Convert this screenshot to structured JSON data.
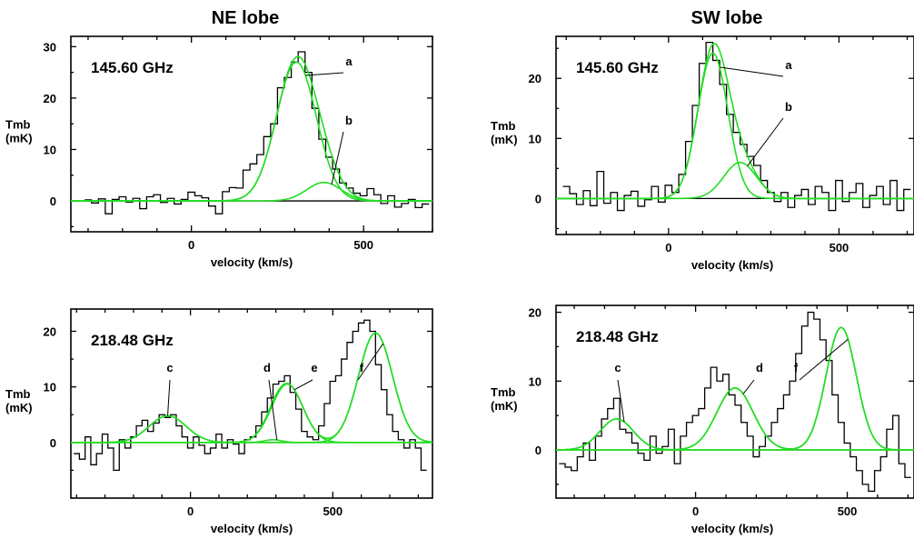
{
  "figure": {
    "left_title": "NE lobe",
    "right_title": "SW lobe"
  },
  "chart_data": [
    {
      "type": "line",
      "panel": "NE lobe",
      "label": "145.60 GHz",
      "xlabel": "velocity (km/s)",
      "ylabel": "Tmb\n(mK)",
      "xlim": [
        -350,
        700
      ],
      "ylim": [
        -6,
        32
      ],
      "xticks": [
        0,
        500
      ],
      "yticks": [
        0,
        10,
        20,
        30
      ],
      "series": [
        {
          "kind": "spectrum",
          "x": [
            -300,
            -280,
            -260,
            -240,
            -220,
            -200,
            -180,
            -160,
            -140,
            -120,
            -100,
            -80,
            -60,
            -40,
            -20,
            0,
            20,
            40,
            60,
            80,
            100,
            120,
            140,
            160,
            180,
            200,
            220,
            240,
            260,
            280,
            300,
            320,
            340,
            360,
            380,
            400,
            420,
            440,
            460,
            480,
            500,
            520,
            540,
            560,
            580,
            600,
            620,
            640,
            660,
            680
          ],
          "y": [
            0.2,
            -0.4,
            0.4,
            -2.5,
            0.3,
            0.8,
            -0.2,
            0.5,
            -1.5,
            0.8,
            1.2,
            -0.3,
            0.5,
            -0.6,
            0.3,
            1.7,
            1.0,
            0.6,
            -1.0,
            -2.5,
            1.8,
            2.6,
            2.5,
            6.0,
            7.2,
            9.0,
            12.5,
            15.0,
            22.0,
            24.0,
            27.0,
            29.0,
            25.0,
            18.0,
            12.0,
            8.5,
            6.2,
            3.5,
            2.5,
            1.5,
            1.0,
            2.4,
            1.2,
            -0.5,
            1.0,
            -1.2,
            -0.5,
            0.3,
            -1.3,
            -0.6
          ]
        },
        {
          "kind": "fit",
          "name": "a",
          "center": 305,
          "amplitude": 27.0,
          "sigma": 58
        },
        {
          "kind": "fit",
          "name": "b",
          "center": 385,
          "amplitude": 3.6,
          "sigma": 50
        }
      ],
      "annotations": [
        "a",
        "b"
      ]
    },
    {
      "type": "line",
      "panel": "SW lobe",
      "label": "145.60 GHz",
      "xlabel": "velocity (km/s)",
      "ylabel": "Tmb\n(mK)",
      "xlim": [
        -330,
        720
      ],
      "ylim": [
        -6,
        27
      ],
      "xticks": [
        0,
        500
      ],
      "yticks": [
        0,
        10,
        20
      ],
      "series": [
        {
          "kind": "spectrum",
          "x": [
            -300,
            -280,
            -260,
            -240,
            -220,
            -200,
            -180,
            -160,
            -140,
            -120,
            -100,
            -80,
            -60,
            -40,
            -20,
            0,
            20,
            40,
            60,
            80,
            100,
            120,
            140,
            160,
            180,
            200,
            220,
            240,
            260,
            280,
            300,
            320,
            340,
            360,
            380,
            400,
            420,
            440,
            460,
            480,
            500,
            520,
            540,
            560,
            580,
            600,
            620,
            640,
            660,
            680,
            700
          ],
          "y": [
            2.0,
            0.8,
            -1.0,
            1.3,
            -1.2,
            4.5,
            -0.8,
            1.0,
            -2.0,
            0.5,
            1.2,
            -1.3,
            -0.2,
            2.0,
            -0.6,
            2.2,
            1.0,
            4.0,
            9.5,
            15.5,
            22.5,
            26.0,
            23.0,
            19.0,
            14.0,
            11.0,
            9.0,
            7.0,
            5.5,
            3.0,
            1.0,
            -0.5,
            1.0,
            -1.5,
            0.5,
            1.5,
            -1.0,
            2.0,
            1.0,
            -2.0,
            3.0,
            -0.5,
            1.0,
            2.5,
            -1.5,
            0.5,
            2.0,
            -1.0,
            3.0,
            -2.0,
            1.5
          ]
        },
        {
          "kind": "fit",
          "name": "a",
          "center": 130,
          "amplitude": 24.2,
          "sigma": 44
        },
        {
          "kind": "fit",
          "name": "b",
          "center": 210,
          "amplitude": 6.0,
          "sigma": 48
        }
      ],
      "annotations": [
        "a",
        "b"
      ]
    },
    {
      "type": "line",
      "panel": "NE lobe",
      "label": "218.48 GHz",
      "xlabel": "velocity (km/s)",
      "ylabel": "Tmb\n(mK)",
      "xlim": [
        -420,
        850
      ],
      "ylim": [
        -10,
        24
      ],
      "xticks": [
        0,
        500
      ],
      "yticks": [
        0,
        10,
        20
      ],
      "series": [
        {
          "kind": "spectrum",
          "x": [
            -400,
            -380,
            -360,
            -340,
            -320,
            -300,
            -280,
            -260,
            -240,
            -220,
            -200,
            -180,
            -160,
            -140,
            -120,
            -100,
            -80,
            -60,
            -40,
            -20,
            0,
            20,
            40,
            60,
            80,
            100,
            120,
            140,
            160,
            180,
            200,
            220,
            240,
            260,
            280,
            300,
            320,
            340,
            360,
            380,
            400,
            420,
            440,
            460,
            480,
            500,
            520,
            540,
            560,
            580,
            600,
            620,
            640,
            660,
            680,
            700,
            720,
            740,
            760,
            780,
            800,
            820
          ],
          "y": [
            -2.0,
            -3.0,
            1.0,
            -4.0,
            -2.0,
            1.5,
            -1.0,
            -5.0,
            0.5,
            -1.0,
            1.0,
            3.0,
            4.0,
            2.0,
            3.5,
            5.0,
            4.5,
            5.0,
            3.0,
            1.0,
            -1.0,
            1.0,
            -0.5,
            -2.0,
            -1.0,
            1.5,
            -1.0,
            0.5,
            -0.3,
            -2.0,
            0.5,
            1.0,
            3.0,
            5.5,
            8.0,
            10.5,
            11.0,
            12.0,
            9.0,
            6.0,
            2.0,
            1.0,
            0.5,
            3.0,
            7.0,
            11.0,
            12.0,
            15.0,
            18.0,
            20.0,
            21.5,
            22.0,
            20.0,
            14.0,
            9.5,
            5.0,
            2.0,
            0.5,
            -1.0,
            0.5,
            -1.0,
            -5.0
          ]
        },
        {
          "kind": "fit",
          "name": "c",
          "center": -80,
          "amplitude": 4.8,
          "sigma": 65
        },
        {
          "kind": "fit",
          "name": "d",
          "center": 290,
          "amplitude": 0.5,
          "sigma": 30
        },
        {
          "kind": "fit",
          "name": "e",
          "center": 340,
          "amplitude": 10.5,
          "sigma": 55
        },
        {
          "kind": "fit",
          "name": "f",
          "center": 650,
          "amplitude": 19.7,
          "sigma": 60
        }
      ],
      "annotations": [
        "c",
        "d",
        "e",
        "f"
      ]
    },
    {
      "type": "line",
      "panel": "SW lobe",
      "label": "218.48 GHz",
      "xlabel": "velocity (km/s)",
      "ylabel": "Tmb\n(mK)",
      "xlim": [
        -460,
        720
      ],
      "ylim": [
        -7,
        21
      ],
      "xticks": [
        0,
        500
      ],
      "yticks": [
        0,
        10,
        20
      ],
      "series": [
        {
          "kind": "spectrum",
          "x": [
            -440,
            -420,
            -400,
            -380,
            -360,
            -340,
            -320,
            -300,
            -280,
            -260,
            -240,
            -220,
            -200,
            -180,
            -160,
            -140,
            -120,
            -100,
            -80,
            -60,
            -40,
            -20,
            0,
            20,
            40,
            60,
            80,
            100,
            120,
            140,
            160,
            180,
            200,
            220,
            240,
            260,
            280,
            300,
            320,
            340,
            360,
            380,
            400,
            420,
            440,
            460,
            480,
            500,
            520,
            540,
            560,
            580,
            600,
            620,
            640,
            660,
            680,
            700
          ],
          "y": [
            -2.0,
            -2.5,
            -3.0,
            -1.0,
            1.0,
            -1.5,
            2.0,
            4.5,
            6.0,
            7.5,
            3.0,
            2.5,
            1.0,
            -0.5,
            -1.5,
            2.0,
            -0.5,
            0.5,
            3.0,
            -2.0,
            2.0,
            4.0,
            5.0,
            6.0,
            9.0,
            12.0,
            10.0,
            11.0,
            8.0,
            6.5,
            4.0,
            2.0,
            -1.0,
            0.5,
            2.0,
            4.0,
            6.0,
            8.0,
            10.0,
            14.0,
            18.0,
            20.0,
            19.0,
            16.0,
            13.0,
            8.0,
            4.0,
            1.0,
            -1.0,
            -3.0,
            -5.0,
            -6.0,
            -3.0,
            -1.0,
            3.0,
            5.0,
            -2.0,
            -4.0
          ]
        },
        {
          "kind": "fit",
          "name": "c",
          "center": -260,
          "amplitude": 4.5,
          "sigma": 55
        },
        {
          "kind": "fit",
          "name": "d",
          "center": 130,
          "amplitude": 9.0,
          "sigma": 60
        },
        {
          "kind": "fit",
          "name": "f",
          "center": 480,
          "amplitude": 17.8,
          "sigma": 50
        }
      ],
      "annotations": [
        "c",
        "d",
        "f"
      ]
    }
  ]
}
